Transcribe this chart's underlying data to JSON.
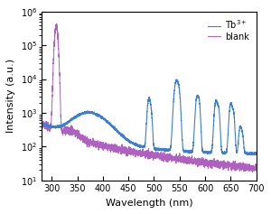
{
  "title": "",
  "xlabel": "Wavelength (nm)",
  "ylabel": "Intensity (a.u.)",
  "xlim": [
    280,
    700
  ],
  "ylim_log": [
    10,
    1000000
  ],
  "tb_color": "#3a7fd4",
  "blank_color": "#b060c0",
  "legend_tb": "Tb$^{3+}$",
  "legend_blank": "blank",
  "background_color": "#ffffff"
}
